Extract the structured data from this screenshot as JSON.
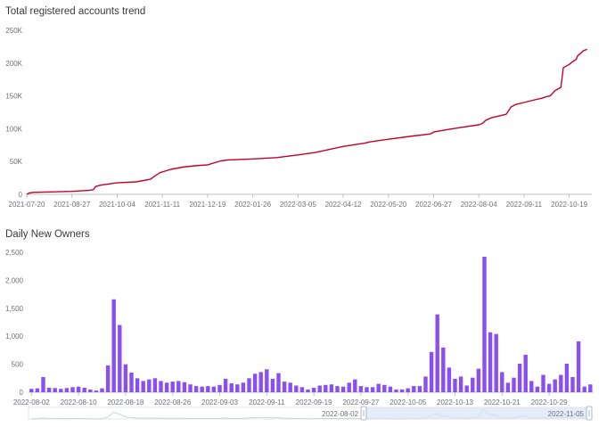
{
  "colors": {
    "line": "#c4002a",
    "bar": "#8a4ff0",
    "axis": "#bfbfbf",
    "zoom_fill": "#d8e4f8",
    "zoom_line": "#b8d0c8"
  },
  "chart_data": [
    {
      "type": "line",
      "title": "Total registered accounts trend",
      "xlabel": "",
      "ylabel": "",
      "ylim": [
        0,
        250000
      ],
      "yticks": [
        0,
        50000,
        100000,
        150000,
        200000,
        250000
      ],
      "ytick_labels": [
        "0",
        "50K",
        "100K",
        "150K",
        "200K",
        "250K"
      ],
      "xtick_labels": [
        "2021-07-20",
        "2021-08-27",
        "2021-10-04",
        "2021-11-11",
        "2021-12-19",
        "2022-01-26",
        "2022-03-05",
        "2022-04-12",
        "2022-05-20",
        "2022-06-27",
        "2022-08-04",
        "2022-09-11",
        "2022-10-19"
      ],
      "xlim": [
        "2021-07-20",
        "2022-11-07"
      ],
      "grid": false,
      "series": [
        {
          "x": [
            "2021-07-20",
            "2021-07-22",
            "2021-07-26",
            "2021-08-05",
            "2021-08-27",
            "2021-09-10",
            "2021-09-14",
            "2021-09-16",
            "2021-09-20",
            "2021-10-04",
            "2021-10-20",
            "2021-11-01",
            "2021-11-04",
            "2021-11-09",
            "2021-11-18",
            "2021-11-28",
            "2021-12-08",
            "2021-12-19",
            "2021-12-30",
            "2022-01-05",
            "2022-01-26",
            "2022-02-15",
            "2022-03-05",
            "2022-03-20",
            "2022-04-12",
            "2022-04-30",
            "2022-05-05",
            "2022-05-20",
            "2022-06-10",
            "2022-06-24",
            "2022-06-26",
            "2022-06-27",
            "2022-07-10",
            "2022-07-20",
            "2022-08-04",
            "2022-08-07",
            "2022-08-10",
            "2022-08-15",
            "2022-08-27",
            "2022-08-31",
            "2022-09-04",
            "2022-09-11",
            "2022-09-20",
            "2022-09-27",
            "2022-09-30",
            "2022-10-03",
            "2022-10-07",
            "2022-10-10",
            "2022-10-12",
            "2022-10-14",
            "2022-10-19",
            "2022-10-21",
            "2022-10-25",
            "2022-10-26",
            "2022-10-31",
            "2022-11-03"
          ],
          "y": [
            0,
            2000,
            3000,
            3500,
            4500,
            6000,
            7000,
            12000,
            14000,
            17500,
            19000,
            23000,
            27000,
            33000,
            38000,
            41500,
            43500,
            45000,
            51000,
            52500,
            54000,
            56000,
            60000,
            64000,
            73000,
            78000,
            80000,
            84000,
            89000,
            92000,
            93500,
            95000,
            99000,
            102000,
            106000,
            108000,
            113000,
            117000,
            122000,
            133000,
            137000,
            140000,
            144000,
            147000,
            149000,
            150000,
            158000,
            161000,
            163000,
            193000,
            198000,
            201000,
            206000,
            211000,
            219000,
            221000
          ]
        }
      ]
    },
    {
      "type": "bar",
      "title": "Daily New Owners",
      "xlabel": "",
      "ylabel": "",
      "ylim": [
        0,
        2500
      ],
      "yticks": [
        0,
        500,
        1000,
        1500,
        2000,
        2500
      ],
      "ytick_labels": [
        "0",
        "500",
        "1,000",
        "1,500",
        "2,000",
        "2,500"
      ],
      "xtick_labels": [
        "2022-08-02",
        "2022-08-10",
        "2022-08-18",
        "2022-08-26",
        "2022-09-03",
        "2022-09-11",
        "2022-09-19",
        "2022-09-27",
        "2022-10-05",
        "2022-10-13",
        "2022-10-21",
        "2022-10-29"
      ],
      "start_date": "2022-08-02",
      "grid": false,
      "values": [
        60,
        70,
        270,
        80,
        75,
        60,
        75,
        90,
        100,
        80,
        50,
        30,
        70,
        480,
        1660,
        1200,
        500,
        350,
        250,
        200,
        230,
        250,
        200,
        170,
        190,
        200,
        180,
        140,
        110,
        100,
        110,
        100,
        130,
        240,
        160,
        140,
        170,
        250,
        330,
        360,
        410,
        240,
        340,
        190,
        170,
        120,
        90,
        50,
        80,
        120,
        130,
        140,
        110,
        100,
        170,
        230,
        110,
        90,
        90,
        150,
        130,
        100,
        50,
        50,
        70,
        110,
        110,
        280,
        720,
        1390,
        800,
        440,
        240,
        280,
        120,
        260,
        420,
        2420,
        1070,
        1040,
        360,
        170,
        260,
        510,
        670,
        200,
        100,
        310,
        150,
        230,
        310,
        510,
        270,
        910,
        100,
        140
      ],
      "zoom_slider": {
        "start_label": "2022-08-02",
        "end_label": "2022-11-05",
        "range_percent": [
          59.5,
          100
        ]
      }
    }
  ]
}
